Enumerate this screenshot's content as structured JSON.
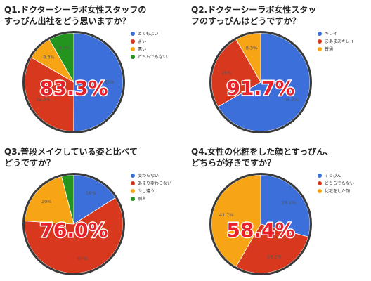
{
  "colors": {
    "blue": "#3c6fd9",
    "red": "#d8381e",
    "orange": "#f7a415",
    "green": "#23951f",
    "outline": "#3a3a3a",
    "highlight": "#e8212a"
  },
  "chart_data": [
    {
      "type": "pie",
      "title_lines": [
        "Q1.ドクターシーラボ女性スタッフの",
        "すっぴん出社をどう思いますか？"
      ],
      "highlight": "83.3%",
      "legend": [
        "とてもよい",
        "よい",
        "悪い",
        "どちらでもない"
      ],
      "slices": [
        {
          "label": "とてもよい",
          "value": 50,
          "text": "50%",
          "color": "blue"
        },
        {
          "label": "よい",
          "value": 33.3,
          "text": "33.3%",
          "color": "red"
        },
        {
          "label": "悪い",
          "value": 8.3,
          "text": "8.3%",
          "color": "orange"
        },
        {
          "label": "どちらでもない",
          "value": 8.3,
          "text": "8.3%",
          "color": "green"
        }
      ]
    },
    {
      "type": "pie",
      "title_lines": [
        "Q2.ドクターシーラボ女性スタッ",
        "フのすっぴんはどうですか？"
      ],
      "highlight": "91.7%",
      "legend": [
        "キレイ",
        "まあまあキレイ",
        "普通"
      ],
      "slices": [
        {
          "label": "キレイ",
          "value": 66.7,
          "text": "66.7%",
          "color": "blue"
        },
        {
          "label": "まあまあキレイ",
          "value": 25,
          "text": "25%",
          "color": "red"
        },
        {
          "label": "普通",
          "value": 8.3,
          "text": "8.3%",
          "color": "orange"
        }
      ]
    },
    {
      "type": "pie",
      "title_lines": [
        "Q3.普段メイクしている姿と比べて",
        "どうですか？"
      ],
      "highlight": "76.0%",
      "legend": [
        "変わらない",
        "あまり変わらない",
        "少し違う",
        "別人"
      ],
      "slices": [
        {
          "label": "変わらない",
          "value": 16,
          "text": "16%",
          "color": "blue"
        },
        {
          "label": "あまり変わらない",
          "value": 60,
          "text": "60%",
          "color": "red"
        },
        {
          "label": "少し違う",
          "value": 20,
          "text": "20%",
          "color": "orange"
        },
        {
          "label": "別人",
          "value": 4,
          "text": "",
          "color": "green"
        }
      ]
    },
    {
      "type": "pie",
      "title_lines": [
        "Q4.女性の化粧をした顔とすっぴん、",
        "どちらが好きですか？"
      ],
      "highlight": "58.4%",
      "legend": [
        "すっぴん",
        "どちらでもない",
        "化粧をした顔"
      ],
      "slices": [
        {
          "label": "すっぴん",
          "value": 29.2,
          "text": "29.2%",
          "color": "blue"
        },
        {
          "label": "どちらでもない",
          "value": 29.2,
          "text": "29.2%",
          "color": "red"
        },
        {
          "label": "化粧をした顔",
          "value": 41.7,
          "text": "41.7%",
          "color": "orange"
        }
      ]
    }
  ]
}
